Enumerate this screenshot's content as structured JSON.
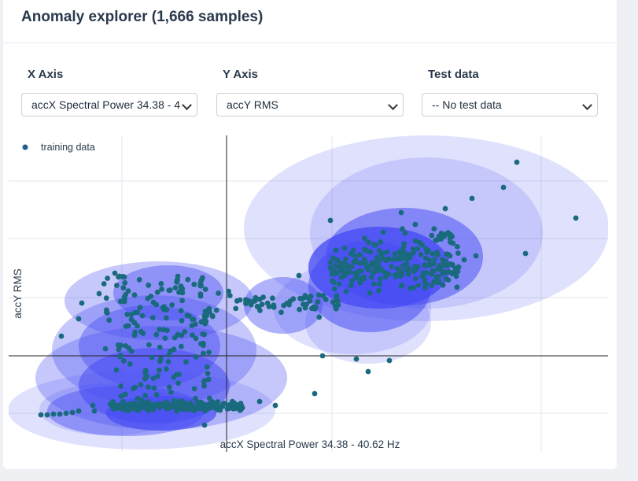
{
  "header": {
    "title": "Anomaly explorer (1,666 samples)"
  },
  "controls": {
    "x_axis": {
      "label": "X Axis",
      "value": "accX Spectral Power 34.38 - 4"
    },
    "y_axis": {
      "label": "Y Axis",
      "value": "accY RMS"
    },
    "test_data": {
      "label": "Test data",
      "value": "-- No test data"
    }
  },
  "chart_data": {
    "type": "scatter",
    "xlabel": "accX Spectral Power 34.38 - 40.62 Hz",
    "ylabel": "accY RMS",
    "legend": {
      "entries": [
        "training data"
      ],
      "placement": "top-left"
    },
    "grid": true,
    "colors": {
      "point": "#1a6a7d",
      "ellipse": "#4a4cf5",
      "legend_dot": "#1f5d8e"
    },
    "series": [
      {
        "name": "training data"
      }
    ],
    "sample_points": [
      {
        "x": 0.03,
        "y": 0.05
      },
      {
        "x": 0.06,
        "y": 0.05
      },
      {
        "x": 0.1,
        "y": 0.06
      },
      {
        "x": 0.15,
        "y": 0.06
      },
      {
        "x": 0.2,
        "y": 0.05
      },
      {
        "x": 0.25,
        "y": 0.06
      },
      {
        "x": 0.3,
        "y": 0.05
      },
      {
        "x": 0.35,
        "y": 0.07
      },
      {
        "x": 0.4,
        "y": 0.06
      },
      {
        "x": 0.45,
        "y": 0.05
      },
      {
        "x": 0.5,
        "y": 0.06
      },
      {
        "x": 0.55,
        "y": 0.07
      },
      {
        "x": 0.6,
        "y": 0.06
      },
      {
        "x": 0.66,
        "y": 0.05
      },
      {
        "x": 0.8,
        "y": 0.06
      },
      {
        "x": 0.12,
        "y": 0.18
      },
      {
        "x": 0.2,
        "y": 0.2
      },
      {
        "x": 0.3,
        "y": 0.25
      },
      {
        "x": 0.4,
        "y": 0.2
      },
      {
        "x": 0.5,
        "y": 0.3
      },
      {
        "x": 0.1,
        "y": 0.4
      },
      {
        "x": 0.2,
        "y": 0.45
      },
      {
        "x": 0.3,
        "y": 0.5
      },
      {
        "x": 0.45,
        "y": 0.48
      },
      {
        "x": 0.6,
        "y": 0.4
      },
      {
        "x": 0.7,
        "y": 0.55
      },
      {
        "x": 0.25,
        "y": 0.65
      },
      {
        "x": 0.35,
        "y": 0.62
      },
      {
        "x": 0.5,
        "y": 0.62
      },
      {
        "x": 0.65,
        "y": 0.6
      },
      {
        "x": 0.75,
        "y": 0.63
      },
      {
        "x": 0.9,
        "y": 0.6
      },
      {
        "x": 1.0,
        "y": 0.58
      },
      {
        "x": 1.1,
        "y": 0.57
      },
      {
        "x": 1.15,
        "y": 0.55
      },
      {
        "x": 1.2,
        "y": 0.53
      },
      {
        "x": 1.3,
        "y": 0.56
      },
      {
        "x": 1.4,
        "y": 0.45
      },
      {
        "x": 1.45,
        "y": 0.38
      },
      {
        "x": 1.55,
        "y": 0.48
      },
      {
        "x": 1.62,
        "y": 0.42
      },
      {
        "x": 1.7,
        "y": 0.35
      },
      {
        "x": 1.75,
        "y": 0.62
      },
      {
        "x": 1.8,
        "y": 0.72
      },
      {
        "x": 1.9,
        "y": 0.7
      },
      {
        "x": 2.0,
        "y": 0.65
      },
      {
        "x": 2.1,
        "y": 0.75
      },
      {
        "x": 2.2,
        "y": 0.8
      },
      {
        "x": 2.3,
        "y": 0.78
      },
      {
        "x": 2.4,
        "y": 0.82
      },
      {
        "x": 2.5,
        "y": 0.76
      },
      {
        "x": 2.6,
        "y": 0.68
      },
      {
        "x": 2.0,
        "y": 0.9
      },
      {
        "x": 2.1,
        "y": 0.95
      },
      {
        "x": 2.2,
        "y": 1.0
      },
      {
        "x": 2.3,
        "y": 1.0
      },
      {
        "x": 2.4,
        "y": 0.98
      },
      {
        "x": 2.5,
        "y": 0.95
      },
      {
        "x": 2.6,
        "y": 0.92
      },
      {
        "x": 2.7,
        "y": 0.95
      },
      {
        "x": 2.8,
        "y": 0.88
      },
      {
        "x": 2.9,
        "y": 0.98
      },
      {
        "x": 2.3,
        "y": 1.1
      },
      {
        "x": 2.45,
        "y": 1.15
      },
      {
        "x": 2.6,
        "y": 1.05
      },
      {
        "x": 2.75,
        "y": 1.1
      },
      {
        "x": 2.15,
        "y": 0.85
      },
      {
        "x": 2.55,
        "y": 0.85
      },
      {
        "x": 1.5,
        "y": 1.2
      },
      {
        "x": 2.0,
        "y": 1.32
      },
      {
        "x": 2.5,
        "y": 1.3
      },
      {
        "x": 2.9,
        "y": 1.3
      },
      {
        "x": 3.05,
        "y": 1.25
      },
      {
        "x": 3.25,
        "y": 1.15
      },
      {
        "x": 3.48,
        "y": 1.05
      },
      {
        "x": 3.62,
        "y": 1.35
      },
      {
        "x": 3.38,
        "y": 1.08
      },
      {
        "x": 4.2,
        "y": 1.42
      },
      {
        "x": 4.55,
        "y": 1.58
      },
      {
        "x": 4.95,
        "y": 1.95
      }
    ]
  }
}
